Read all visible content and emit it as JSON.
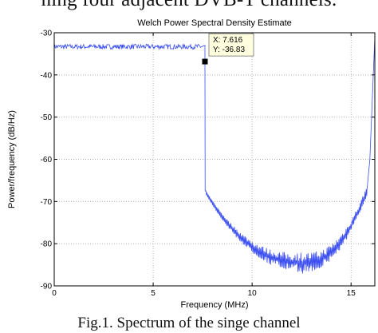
{
  "page": {
    "top_text": "ning four adjacent DVB-T channels.",
    "caption": "Fig.1. Spectrum of the singe channel"
  },
  "colors": {
    "series": "#3b4ef0",
    "grid": "#b4b4b4",
    "axis": "#000000",
    "tooltip_bg": "#ffffe0"
  },
  "chart_data": {
    "type": "line",
    "title": "Welch Power Spectral Density Estimate",
    "xlabel": "Frequency (MHz)",
    "ylabel": "Power/frequency (dB/Hz)",
    "xlim": [
      0,
      16.2
    ],
    "ylim": [
      -90,
      -30
    ],
    "xticks": [
      0,
      5,
      10,
      15
    ],
    "yticks": [
      -90,
      -80,
      -70,
      -60,
      -50,
      -40,
      -30
    ],
    "grid": true,
    "series": [
      {
        "segments": [
          {
            "x_range": [
              0,
              7.616
            ],
            "level": -33.3,
            "ripple": 0.6,
            "edge_value": -36.83
          },
          {
            "x_range": [
              7.616,
              15.8
            ],
            "edge_value": -67.5,
            "center_x": 12.6,
            "center_mean": -84.5,
            "ripple_max": 2.0
          },
          {
            "x_range": [
              15.8,
              16.2
            ],
            "edge_value": -31.0
          }
        ]
      }
    ],
    "datatip": {
      "x": 7.616,
      "y": -36.83,
      "x_label": "X: 7.616",
      "y_label": "Y: -36.83"
    }
  }
}
